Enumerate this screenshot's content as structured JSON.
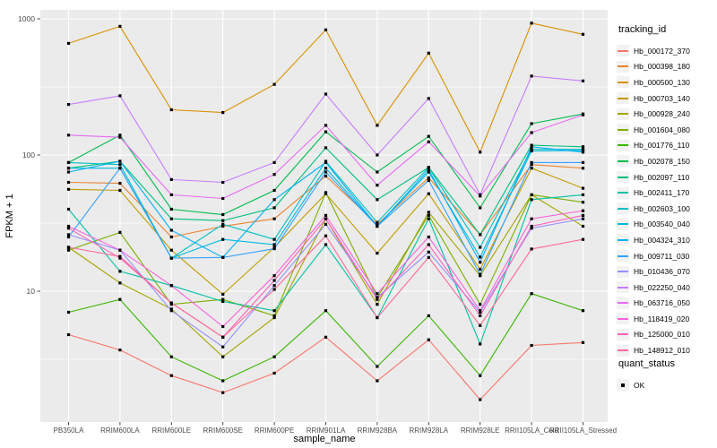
{
  "figure": {
    "panel_background": "#EBEBEB",
    "grid_color": "#FFFFFF",
    "axis_text_color": "#4D4D4D",
    "tick_mark_color": "#333333",
    "marker_color": "#000000",
    "legend_key_background": "#F2F2F2"
  },
  "chart_data": {
    "type": "line",
    "xlabel": "sample_name",
    "ylabel": "FPKM + 1",
    "y_scale": "log10",
    "y_ticks": [
      10,
      100,
      1000
    ],
    "y_minor_ticks": [
      3.16,
      31.6,
      316
    ],
    "ylim": [
      1.1,
      1160
    ],
    "grid": true,
    "legend_position": "right",
    "legend": {
      "tracking_title": "tracking_id",
      "quant_title": "quant_status",
      "quant_value": "OK"
    },
    "categories": [
      "PB350LA",
      "RRIM600LA",
      "RRIM600LE",
      "RRIM600SE",
      "RRIM600PE",
      "RRIM901LA",
      "RRIM928BA",
      "RRIM928LA",
      "RRIM928LE",
      "RRII105LA_Cold",
      "RRII105LA_Stressed"
    ],
    "series": [
      {
        "name": "Hb_000172_370",
        "color": "#F8766D",
        "values": [
          4.8,
          3.7,
          2.4,
          1.8,
          2.5,
          4.6,
          2.2,
          4.4,
          1.6,
          4.0,
          4.2
        ]
      },
      {
        "name": "Hb_000398_180",
        "color": "#EA8331",
        "values": [
          63,
          62,
          25,
          30,
          34,
          70,
          31,
          68,
          26,
          85,
          80
        ]
      },
      {
        "name": "Hb_000500_130",
        "color": "#D89000",
        "values": [
          660,
          880,
          215,
          205,
          330,
          830,
          165,
          560,
          105,
          930,
          770
        ]
      },
      {
        "name": "Hb_000703_140",
        "color": "#C09B00",
        "values": [
          56,
          55,
          20,
          9.5,
          21,
          52,
          19,
          52,
          14.5,
          80,
          57
        ]
      },
      {
        "name": "Hb_000928_240",
        "color": "#A3A500",
        "values": [
          21,
          11.5,
          7.4,
          3.3,
          6.4,
          34,
          8,
          38,
          13,
          51,
          30
        ]
      },
      {
        "name": "Hb_001604_080",
        "color": "#7CAE00",
        "values": [
          20,
          27,
          8,
          8.7,
          6.6,
          53,
          9,
          36,
          8,
          51,
          45
        ]
      },
      {
        "name": "Hb_001776_110",
        "color": "#39B600",
        "values": [
          7,
          8.7,
          3.3,
          2.2,
          3.3,
          7.2,
          2.8,
          6.6,
          2.4,
          9.6,
          7.2
        ]
      },
      {
        "name": "Hb_002078_150",
        "color": "#00BB4E",
        "values": [
          88,
          140,
          40,
          36.5,
          55,
          148,
          75,
          137,
          41,
          170,
          200
        ]
      },
      {
        "name": "Hb_002097_110",
        "color": "#00BF7D",
        "values": [
          80,
          90,
          34,
          33,
          41,
          113,
          47,
          81,
          26,
          118,
          115
        ]
      },
      {
        "name": "Hb_002411_170",
        "color": "#00C1A3",
        "values": [
          40,
          14,
          11,
          8.4,
          7.2,
          22,
          6.4,
          34,
          4.1,
          47,
          51
        ]
      },
      {
        "name": "Hb_002603_100",
        "color": "#00BFC4",
        "values": [
          88,
          85,
          17.5,
          31,
          24,
          90,
          32,
          81,
          21,
          110,
          110
        ]
      },
      {
        "name": "Hb_003540_040",
        "color": "#00BAE0",
        "values": [
          80,
          80,
          17.5,
          24,
          22,
          80,
          30,
          75,
          17.8,
          107,
          108
        ]
      },
      {
        "name": "Hb_004324_310",
        "color": "#00B0F6",
        "values": [
          75,
          90,
          28,
          17.7,
          47,
          88,
          30,
          78,
          16.3,
          115,
          105
        ]
      },
      {
        "name": "Hb_009711_030",
        "color": "#35A2FF",
        "values": [
          25,
          80,
          17.5,
          17.7,
          20.5,
          75,
          30,
          65,
          13.3,
          88,
          88
        ]
      },
      {
        "name": "Hb_010436_070",
        "color": "#9590FF",
        "values": [
          26,
          20,
          7.2,
          3.9,
          11,
          31,
          9,
          19.4,
          7,
          29,
          34
        ]
      },
      {
        "name": "Hb_022250_040",
        "color": "#C77CFF",
        "values": [
          235,
          272,
          66,
          63,
          88,
          280,
          100,
          260,
          51,
          380,
          350
        ]
      },
      {
        "name": "Hb_063716_050",
        "color": "#E76BF3",
        "values": [
          140,
          135,
          51,
          48,
          72,
          165,
          60,
          125,
          50,
          146,
          197
        ]
      },
      {
        "name": "Hb_118419_020",
        "color": "#FA62DB",
        "values": [
          30,
          20,
          11,
          5.5,
          13,
          36,
          9.6,
          25,
          7.2,
          34,
          39
        ]
      },
      {
        "name": "Hb_125000_010",
        "color": "#FF62BC",
        "values": [
          29,
          17.5,
          8.2,
          4.6,
          12,
          34,
          8.7,
          22,
          6.6,
          30,
          36
        ]
      },
      {
        "name": "Hb_148912_010",
        "color": "#FF6A98",
        "values": [
          21,
          18,
          8.2,
          4.6,
          10.3,
          25.5,
          6.4,
          17.7,
          5.6,
          20.4,
          24
        ]
      }
    ]
  }
}
